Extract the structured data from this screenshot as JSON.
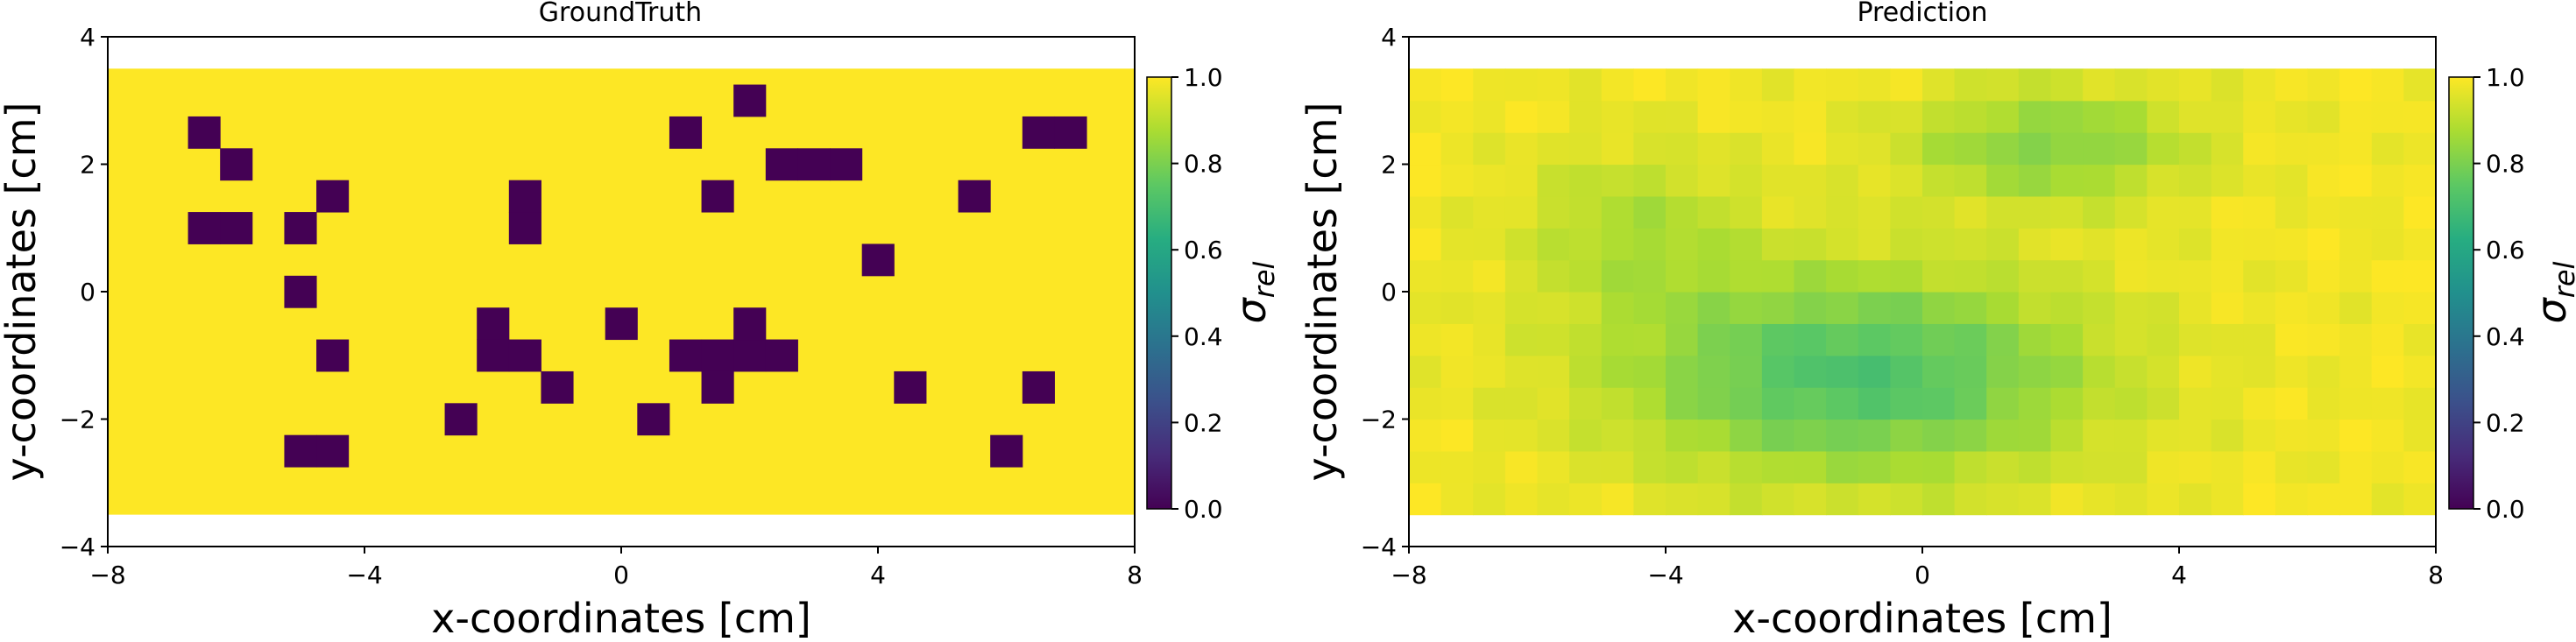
{
  "chart_data": [
    {
      "type": "heatmap",
      "title": "GroundTruth",
      "xlabel": "x-coordinates [cm]",
      "ylabel": "y-coordinates [cm]",
      "xlim": [
        -8,
        8
      ],
      "ylim": [
        -4,
        4
      ],
      "xticks": [
        -8,
        -4,
        0,
        4,
        8
      ],
      "yticks": [
        -4,
        -2,
        0,
        2,
        4
      ],
      "field_extent": {
        "x": [
          -8,
          8
        ],
        "y": [
          -3.5,
          3.5
        ]
      },
      "cell_size": 0.5,
      "background_value": 1.0,
      "low_cells": [
        {
          "x": -6.5,
          "y": 2.5
        },
        {
          "x": -6.0,
          "y": 2.0
        },
        {
          "x": -4.5,
          "y": 1.5
        },
        {
          "x": -6.5,
          "y": 1.0
        },
        {
          "x": -6.0,
          "y": 1.0
        },
        {
          "x": -5.0,
          "y": 1.0
        },
        {
          "x": -5.0,
          "y": 0.0
        },
        {
          "x": -4.5,
          "y": -1.0
        },
        {
          "x": -5.0,
          "y": -2.5
        },
        {
          "x": -4.5,
          "y": -2.5
        },
        {
          "x": -1.5,
          "y": 1.5
        },
        {
          "x": -1.5,
          "y": 1.0
        },
        {
          "x": -2.0,
          "y": -0.5
        },
        {
          "x": -2.0,
          "y": -1.0
        },
        {
          "x": -1.5,
          "y": -1.0
        },
        {
          "x": -1.0,
          "y": -1.5
        },
        {
          "x": -2.5,
          "y": -2.0
        },
        {
          "x": 0.0,
          "y": -0.5
        },
        {
          "x": 0.5,
          "y": -2.0
        },
        {
          "x": 1.0,
          "y": 2.5
        },
        {
          "x": 2.0,
          "y": 3.0
        },
        {
          "x": 1.5,
          "y": 1.5
        },
        {
          "x": 2.5,
          "y": 2.0
        },
        {
          "x": 3.0,
          "y": 2.0
        },
        {
          "x": 3.5,
          "y": 2.0
        },
        {
          "x": 1.0,
          "y": -1.0
        },
        {
          "x": 1.5,
          "y": -1.0
        },
        {
          "x": 2.0,
          "y": -1.0
        },
        {
          "x": 2.5,
          "y": -1.0
        },
        {
          "x": 2.0,
          "y": -0.5
        },
        {
          "x": 1.5,
          "y": -1.5
        },
        {
          "x": 4.0,
          "y": 0.5
        },
        {
          "x": 4.5,
          "y": -1.5
        },
        {
          "x": 5.5,
          "y": 1.5
        },
        {
          "x": 6.5,
          "y": 2.5
        },
        {
          "x": 7.0,
          "y": 2.5
        },
        {
          "x": 6.5,
          "y": -1.5
        },
        {
          "x": 6.0,
          "y": -2.5
        }
      ],
      "low_value": 0.0,
      "colorbar": {
        "label": "σrel",
        "range": [
          0,
          1
        ],
        "ticks": [
          "0.0",
          "0.2",
          "0.4",
          "0.6",
          "0.8",
          "1.0"
        ]
      }
    },
    {
      "type": "heatmap",
      "title": "Prediction",
      "xlabel": "x-coordinates [cm]",
      "ylabel": "y-coordinates [cm]",
      "xlim": [
        -8,
        8
      ],
      "ylim": [
        -4,
        4
      ],
      "xticks": [
        -8,
        -4,
        0,
        4,
        8
      ],
      "yticks": [
        -4,
        -2,
        0,
        2,
        4
      ],
      "field_extent": {
        "x": [
          -8,
          8
        ],
        "y": [
          -3.5,
          3.5
        ]
      },
      "cell_size": 0.5,
      "value_range_estimate": [
        0.7,
        1.0
      ],
      "pattern": "values near 0.95-1.0 at the edges, dipping to about 0.72 around x = -1, y = -1.3, and about 0.8 around x = 2, y = 2.3",
      "colorbar": {
        "label": "σrel",
        "range": [
          0,
          1
        ],
        "ticks": [
          "0.0",
          "0.2",
          "0.4",
          "0.6",
          "0.8",
          "1.0"
        ]
      }
    }
  ]
}
